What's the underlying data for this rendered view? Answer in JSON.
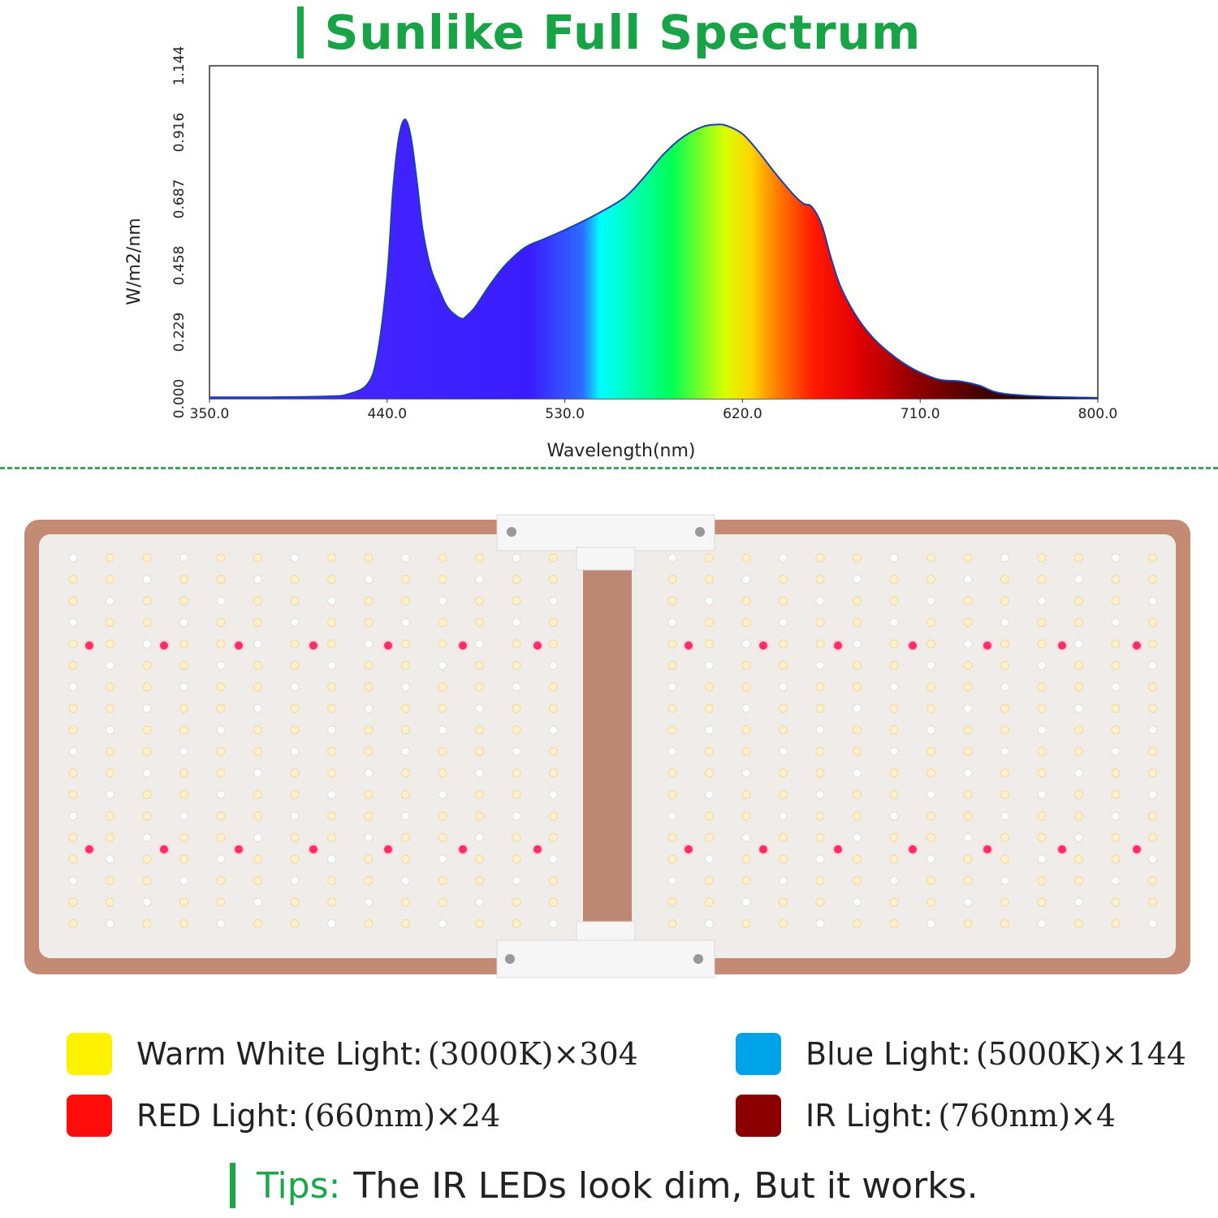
{
  "header": {
    "title": "Sunlike Full Spectrum"
  },
  "chart_data": {
    "type": "area",
    "title": "Sunlike Full Spectrum",
    "xlabel": "Wavelength(nm)",
    "ylabel": "W/m2/nm",
    "xlim": [
      350,
      800
    ],
    "ylim": [
      0,
      1.144
    ],
    "xticks": [
      "350.0",
      "440.0",
      "530.0",
      "620.0",
      "710.0",
      "800.0"
    ],
    "yticks": [
      "0.000",
      "0.229",
      "0.458",
      "0.687",
      "0.916",
      "1.144"
    ],
    "x": [
      350,
      380,
      410,
      420,
      430,
      435,
      440,
      443,
      446,
      449,
      452,
      455,
      458,
      462,
      466,
      470,
      474,
      478,
      480,
      484,
      488,
      493,
      500,
      510,
      520,
      530,
      545,
      560,
      570,
      580,
      590,
      600,
      607,
      612,
      620,
      628,
      636,
      646,
      651,
      655,
      660,
      665,
      670,
      678,
      686,
      694,
      702,
      710,
      720,
      730,
      740,
      750,
      770,
      800
    ],
    "y": [
      0.005,
      0.005,
      0.008,
      0.015,
      0.05,
      0.15,
      0.42,
      0.72,
      0.9,
      0.96,
      0.9,
      0.75,
      0.58,
      0.45,
      0.38,
      0.32,
      0.29,
      0.275,
      0.283,
      0.31,
      0.35,
      0.4,
      0.46,
      0.52,
      0.55,
      0.58,
      0.63,
      0.69,
      0.76,
      0.84,
      0.9,
      0.935,
      0.942,
      0.938,
      0.91,
      0.85,
      0.78,
      0.7,
      0.67,
      0.66,
      0.6,
      0.48,
      0.38,
      0.28,
      0.21,
      0.16,
      0.12,
      0.09,
      0.065,
      0.06,
      0.045,
      0.02,
      0.008,
      0.003
    ],
    "line_color": "#1a3fb5"
  },
  "legend": {
    "warm": {
      "label": "Warm White Light:",
      "value": "(3000K)×304",
      "color": "#fff200"
    },
    "blue": {
      "label": "Blue Light:",
      "value": "(5000K)×144",
      "color": "#00a2e8"
    },
    "red": {
      "label": "RED Light:",
      "value": "(660nm)×24",
      "color": "#ff0d0d"
    },
    "ir": {
      "label": "IR Light:",
      "value": "(760nm)×4",
      "color": "#8b0000"
    }
  },
  "tips": {
    "head": "Tips:",
    "text": "The IR LEDs look dim, But it works."
  },
  "panel": {
    "frame_color": "#c38a74",
    "board_color": "#efecea",
    "warm_led": "#fff0cc",
    "cool_led": "#ffffff",
    "red_led": "#ff2d64"
  }
}
